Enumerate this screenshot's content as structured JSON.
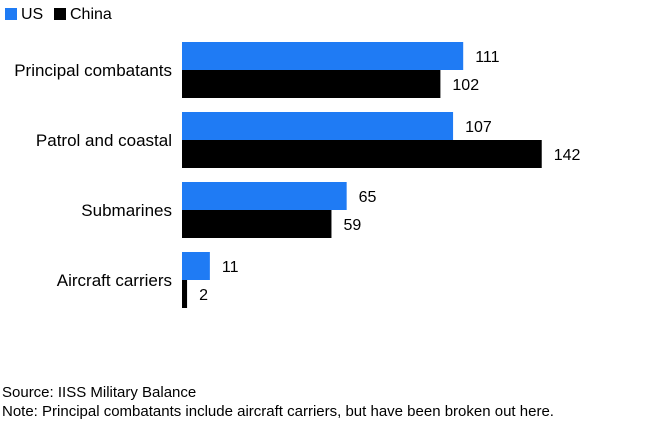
{
  "chart_data": {
    "type": "bar",
    "orientation": "horizontal",
    "categories": [
      "Principal combatants",
      "Patrol and coastal",
      "Submarines",
      "Aircraft carriers"
    ],
    "series": [
      {
        "name": "US",
        "color": "#1f7bf4",
        "values": [
          111,
          107,
          65,
          11
        ]
      },
      {
        "name": "China",
        "color": "#000000",
        "values": [
          102,
          142,
          59,
          2
        ]
      }
    ],
    "xlim": [
      0,
      150
    ],
    "grid": false,
    "legend": "top-left"
  },
  "footer": {
    "source": "Source: IISS Military Balance",
    "note": "Note: Principal combatants include aircraft carriers, but have been broken out here."
  }
}
